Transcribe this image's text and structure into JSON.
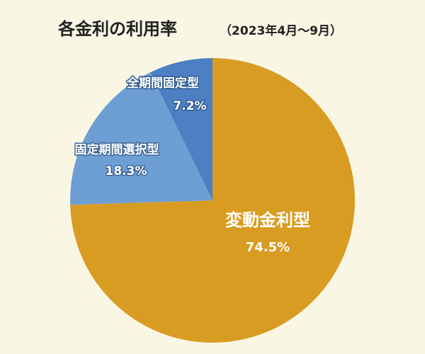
{
  "chart_data": {
    "type": "pie",
    "title": "各金利の利用率",
    "subtitle": "（2023年4月～9月）",
    "categories": [
      "変動金利型",
      "固定期間選択型",
      "全期間固定型"
    ],
    "values": [
      74.5,
      18.3,
      7.2
    ],
    "value_labels": [
      "74.5%",
      "18.3%",
      "7.2%"
    ],
    "colors": [
      "#d99c22",
      "#6e9fd4",
      "#4d80c2"
    ]
  }
}
